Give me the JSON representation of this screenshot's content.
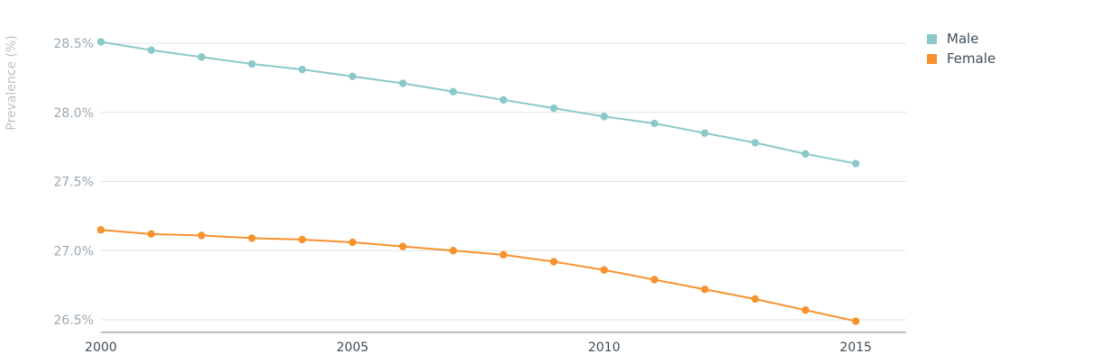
{
  "chart_data": {
    "type": "line",
    "title": "",
    "xlabel": "",
    "ylabel": "Prevalence (%)",
    "xlim": [
      2000,
      2016
    ],
    "ylim": [
      26.4,
      28.6
    ],
    "x_ticks": [
      "2000",
      "2005",
      "2010",
      "2015"
    ],
    "y_ticks": [
      "26.5%",
      "27.0%",
      "27.5%",
      "28.0%",
      "28.5%"
    ],
    "grid": true,
    "legend_position": "top-right",
    "x": [
      2000,
      2001,
      2002,
      2003,
      2004,
      2005,
      2006,
      2007,
      2008,
      2009,
      2010,
      2011,
      2012,
      2013,
      2014,
      2015
    ],
    "series": [
      {
        "name": "Male",
        "color": "#8cc8c8",
        "values": [
          28.51,
          28.45,
          28.4,
          28.35,
          28.31,
          28.26,
          28.21,
          28.15,
          28.09,
          28.03,
          27.97,
          27.92,
          27.85,
          27.78,
          27.7,
          27.63
        ]
      },
      {
        "name": "Female",
        "color": "#f7922e",
        "values": [
          27.15,
          27.12,
          27.11,
          27.09,
          27.08,
          27.06,
          27.03,
          27.0,
          26.97,
          26.92,
          26.86,
          26.79,
          26.72,
          26.65,
          26.57,
          26.49
        ]
      }
    ]
  }
}
